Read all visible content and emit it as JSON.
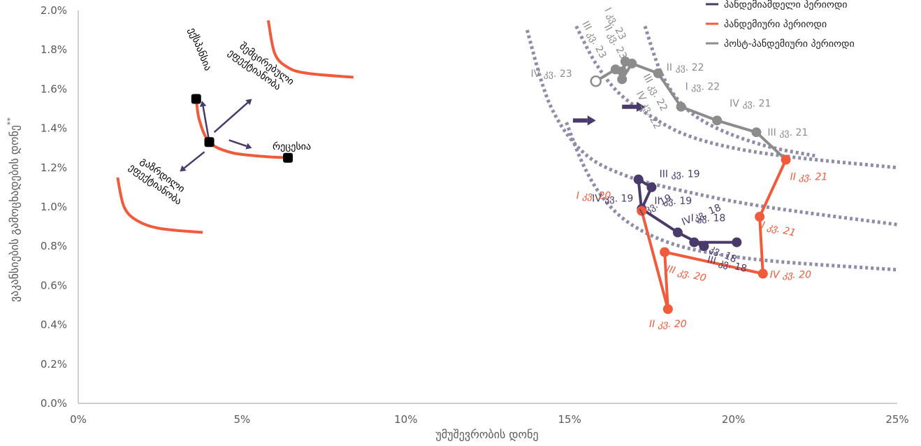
{
  "chart_data": {
    "type": "line",
    "xlabel": "უმუშევრობის დონე",
    "ylabel": "ვაკანსიების გამოცხადების დონე",
    "ylabel_superscript": "**",
    "xlim": [
      0,
      25
    ],
    "ylim": [
      0,
      2.0
    ],
    "x_ticks": [
      {
        "value": 0,
        "label": "0%"
      },
      {
        "value": 5,
        "label": "5%"
      },
      {
        "value": 10,
        "label": "10%"
      },
      {
        "value": 15,
        "label": "15%"
      },
      {
        "value": 20,
        "label": "20%"
      },
      {
        "value": 25,
        "label": "25%"
      }
    ],
    "y_ticks": [
      {
        "value": 0.0,
        "label": "0.0%"
      },
      {
        "value": 0.2,
        "label": "0.2%"
      },
      {
        "value": 0.4,
        "label": "0.4%"
      },
      {
        "value": 0.6,
        "label": "0.6%"
      },
      {
        "value": 0.8,
        "label": "0.8%"
      },
      {
        "value": 1.0,
        "label": "1.0%"
      },
      {
        "value": 1.2,
        "label": "1.2%"
      },
      {
        "value": 1.4,
        "label": "1.4%"
      },
      {
        "value": 1.6,
        "label": "1.6%"
      },
      {
        "value": 1.8,
        "label": "1.8%"
      },
      {
        "value": 2.0,
        "label": "2.0%"
      }
    ],
    "grid": false,
    "legend_position": "top-right",
    "series": [
      {
        "name": "პანდემიამდელი პერიოდი",
        "color": "#4a3a6b",
        "points": [
          {
            "x": 20.1,
            "y": 0.82,
            "label": "I კვ. 18"
          },
          {
            "x": 18.8,
            "y": 0.82,
            "label": "II კვ. 18"
          },
          {
            "x": 19.1,
            "y": 0.8,
            "label": "III კვ. 18"
          },
          {
            "x": 18.3,
            "y": 0.87,
            "label": "IV კვ. 18"
          },
          {
            "x": 17.2,
            "y": 0.99,
            "label": "I კვ. 19"
          },
          {
            "x": 17.5,
            "y": 1.1,
            "label": "II კვ. 19"
          },
          {
            "x": 17.1,
            "y": 1.14,
            "label": "III კვ. 19"
          },
          {
            "x": 17.2,
            "y": 0.98,
            "label": "IV კვ. 19"
          }
        ]
      },
      {
        "name": "პანდემიური პერიოდი",
        "color": "#f15a3a",
        "points": [
          {
            "x": 17.2,
            "y": 0.98,
            "label": "I კვ. 20"
          },
          {
            "x": 18.0,
            "y": 0.48,
            "label": "II კვ. 20"
          },
          {
            "x": 17.9,
            "y": 0.77,
            "label": "III კვ. 20"
          },
          {
            "x": 20.9,
            "y": 0.66,
            "label": "IV კვ. 20"
          },
          {
            "x": 20.8,
            "y": 0.95,
            "label": "I კვ. 21"
          },
          {
            "x": 21.6,
            "y": 1.24,
            "label": "II კვ. 21"
          }
        ]
      },
      {
        "name": "პოსტ-პანდემიური პერიოდი",
        "color": "#8c8c8c",
        "points": [
          {
            "x": 21.6,
            "y": 1.24,
            "label": ""
          },
          {
            "x": 20.7,
            "y": 1.38,
            "label": "III კვ. 21"
          },
          {
            "x": 19.5,
            "y": 1.44,
            "label": "IV კვ. 21"
          },
          {
            "x": 18.4,
            "y": 1.51,
            "label": "I კვ. 22"
          },
          {
            "x": 17.7,
            "y": 1.68,
            "label": "II კვ. 22"
          },
          {
            "x": 16.9,
            "y": 1.73,
            "label": "III კვ. 22"
          },
          {
            "x": 16.6,
            "y": 1.65,
            "label": "IV კვ. 22"
          },
          {
            "x": 16.7,
            "y": 1.74,
            "label": "I კვ. 23"
          },
          {
            "x": 16.6,
            "y": 1.69,
            "label": "II კვ. 23"
          },
          {
            "x": 16.4,
            "y": 1.7,
            "label": "III კვ. 23"
          },
          {
            "x": 15.8,
            "y": 1.64,
            "label": "IV კვ. 23"
          }
        ]
      }
    ],
    "reference_curves": [
      {
        "name": "beveridge-curve-1",
        "style": "dotted",
        "color": "#8f8ba8",
        "points": [
          [
            14.9,
            1.43
          ],
          [
            15.4,
            1.22
          ],
          [
            16.0,
            1.05
          ],
          [
            16.8,
            0.92
          ],
          [
            18.0,
            0.82
          ],
          [
            19.5,
            0.76
          ],
          [
            21.5,
            0.72
          ],
          [
            25.0,
            0.68
          ]
        ]
      },
      {
        "name": "beveridge-curve-2",
        "style": "dotted",
        "color": "#8f8ba8",
        "points": [
          [
            13.7,
            1.9
          ],
          [
            14.4,
            1.52
          ],
          [
            15.4,
            1.28
          ],
          [
            16.7,
            1.16
          ],
          [
            18.5,
            1.08
          ],
          [
            21.0,
            1.0
          ],
          [
            25.0,
            0.91
          ]
        ]
      },
      {
        "name": "beveridge-curve-3",
        "style": "dotted",
        "color": "#8f8ba8",
        "points": [
          [
            15.2,
            1.92
          ],
          [
            15.8,
            1.73
          ],
          [
            16.5,
            1.58
          ],
          [
            17.4,
            1.47
          ],
          [
            18.5,
            1.37
          ],
          [
            20.0,
            1.3
          ],
          [
            22.0,
            1.25
          ],
          [
            25.0,
            1.2
          ]
        ]
      },
      {
        "name": "beveridge-curve-4",
        "style": "dotted",
        "color": "#8f8ba8",
        "points": [
          [
            17.3,
            1.92
          ],
          [
            17.8,
            1.68
          ],
          [
            18.5,
            1.51
          ],
          [
            19.5,
            1.4
          ],
          [
            21.0,
            1.31
          ],
          [
            22.5,
            1.26
          ]
        ]
      }
    ],
    "shift_arrows": [
      {
        "name": "shift-arrow-1",
        "from": [
          15.1,
          1.44
        ],
        "to": [
          15.8,
          1.44
        ]
      },
      {
        "name": "shift-arrow-2",
        "from": [
          16.6,
          1.51
        ],
        "to": [
          17.3,
          1.51
        ]
      }
    ],
    "inset": {
      "curves": [
        {
          "name": "inset-curve-top",
          "points": [
            [
              5.8,
              1.95
            ],
            [
              6.0,
              1.78
            ],
            [
              6.4,
              1.71
            ],
            [
              7.0,
              1.68
            ],
            [
              8.4,
              1.66
            ]
          ]
        },
        {
          "name": "inset-curve-middle",
          "points": [
            [
              3.6,
              1.55
            ],
            [
              3.7,
              1.44
            ],
            [
              4.0,
              1.33
            ],
            [
              4.6,
              1.28
            ],
            [
              5.4,
              1.26
            ],
            [
              6.4,
              1.25
            ]
          ]
        },
        {
          "name": "inset-curve-bottom",
          "points": [
            [
              1.2,
              1.15
            ],
            [
              1.4,
              1.0
            ],
            [
              1.8,
              0.93
            ],
            [
              2.5,
              0.89
            ],
            [
              3.8,
              0.87
            ]
          ]
        }
      ],
      "points": [
        {
          "name": "inset-point-expansion",
          "x": 3.6,
          "y": 1.55
        },
        {
          "name": "inset-point-center",
          "x": 4.0,
          "y": 1.33
        },
        {
          "name": "inset-point-recession",
          "x": 6.4,
          "y": 1.25
        }
      ],
      "arrows": [
        {
          "name": "inset-arrow-expansion",
          "from": [
            4.0,
            1.33
          ],
          "to": [
            3.78,
            1.54
          ]
        },
        {
          "name": "inset-arrow-efficiency-down",
          "from": [
            4.15,
            1.38
          ],
          "to": [
            5.3,
            1.55
          ]
        },
        {
          "name": "inset-arrow-recession",
          "from": [
            4.6,
            1.34
          ],
          "to": [
            5.3,
            1.3
          ]
        },
        {
          "name": "inset-arrow-efficiency-up",
          "from": [
            3.85,
            1.28
          ],
          "to": [
            3.1,
            1.18
          ]
        }
      ],
      "labels": {
        "expansion": "ექსპანსია",
        "efficiency_down": "შემცირებული ეფექტიანობა",
        "recession": "რეცესია",
        "efficiency_up": "გაზრდილი ეფექტიანობა"
      }
    }
  }
}
